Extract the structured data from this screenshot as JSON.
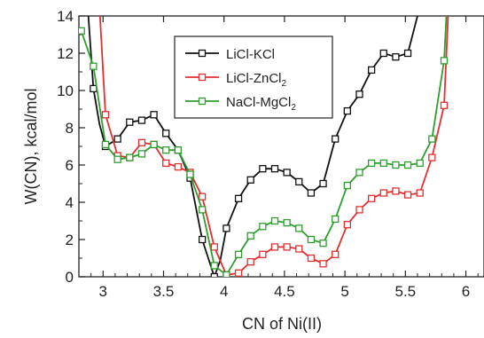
{
  "chart_data": {
    "type": "line",
    "xlabel": "CN of Ni(II)",
    "ylabel": "W(CN), kcal/mol",
    "xlim": [
      2.8,
      6.15
    ],
    "ylim": [
      0,
      14
    ],
    "x_ticks": [
      3,
      3.5,
      4,
      4.5,
      5,
      5.5,
      6
    ],
    "x_tick_labels": [
      "3",
      "3.5",
      "4",
      "4.5",
      "5",
      "5.5",
      "6"
    ],
    "y_ticks": [
      0,
      2,
      4,
      6,
      8,
      10,
      12,
      14
    ],
    "y_tick_labels": [
      "0",
      "2",
      "4",
      "6",
      "8",
      "10",
      "12",
      "14"
    ],
    "grid": false,
    "legend_position": "top-center",
    "marker": "open-square",
    "series": [
      {
        "name": "LiCl-KCl",
        "legend_main": "LiCl-KCl",
        "legend_sub": "",
        "legend_tail": "",
        "color": "#111111",
        "x": [
          2.82,
          2.92,
          3.02,
          3.12,
          3.22,
          3.32,
          3.42,
          3.52,
          3.62,
          3.72,
          3.82,
          3.92,
          4.02,
          4.12,
          4.22,
          4.32,
          4.42,
          4.52,
          4.62,
          4.72,
          4.82,
          4.92,
          5.02,
          5.12,
          5.22,
          5.32,
          5.42,
          5.52,
          5.62
        ],
        "y": [
          14.5,
          10.1,
          7.0,
          7.4,
          8.3,
          8.4,
          8.7,
          7.7,
          6.8,
          5.3,
          2.0,
          0.0,
          2.6,
          4.2,
          5.2,
          5.8,
          5.8,
          5.6,
          5.1,
          4.5,
          5.0,
          7.4,
          8.9,
          9.8,
          11.1,
          12.0,
          11.8,
          12.0,
          14.5
        ],
        "line_x": [
          2.82,
          2.87,
          2.92,
          2.97,
          3.02,
          3.12,
          3.22,
          3.32,
          3.42,
          3.52,
          3.62,
          3.72,
          3.82,
          3.92,
          3.97,
          4.02,
          4.12,
          4.22,
          4.32,
          4.42,
          4.52,
          4.62,
          4.72,
          4.82,
          4.92,
          5.02,
          5.12,
          5.22,
          5.32,
          5.42,
          5.52,
          5.62,
          5.66
        ],
        "line_y": [
          18,
          14.8,
          10.1,
          8.2,
          7.0,
          7.4,
          8.3,
          8.4,
          8.7,
          7.7,
          6.8,
          5.3,
          2.0,
          0.0,
          0.9,
          2.6,
          4.2,
          5.2,
          5.8,
          5.8,
          5.6,
          5.1,
          4.5,
          5.0,
          7.4,
          8.9,
          9.8,
          11.1,
          12.0,
          11.8,
          12.0,
          14.5,
          18
        ]
      },
      {
        "name": "LiCl-ZnCl2",
        "legend_main": "LiCl-ZnCl",
        "legend_sub": "2",
        "legend_tail": "",
        "color": "#e03030",
        "x": [
          3.02,
          3.12,
          3.22,
          3.32,
          3.42,
          3.52,
          3.62,
          3.72,
          3.82,
          3.92,
          4.02,
          4.12,
          4.22,
          4.32,
          4.42,
          4.52,
          4.62,
          4.72,
          4.82,
          4.92,
          5.02,
          5.12,
          5.22,
          5.32,
          5.42,
          5.52,
          5.62,
          5.72,
          5.82
        ],
        "y": [
          8.7,
          6.5,
          6.4,
          7.2,
          7.1,
          6.1,
          5.9,
          5.6,
          4.3,
          1.6,
          0.1,
          0.2,
          0.8,
          1.2,
          1.6,
          1.6,
          1.5,
          1.0,
          0.7,
          1.2,
          2.8,
          3.6,
          4.2,
          4.5,
          4.6,
          4.4,
          4.5,
          6.4,
          9.2
        ],
        "line_x": [
          2.93,
          2.97,
          3.02,
          3.12,
          3.22,
          3.32,
          3.42,
          3.52,
          3.62,
          3.72,
          3.82,
          3.92,
          4.02,
          4.12,
          4.22,
          4.32,
          4.42,
          4.52,
          4.62,
          4.72,
          4.82,
          4.92,
          5.02,
          5.12,
          5.22,
          5.32,
          5.42,
          5.52,
          5.62,
          5.72,
          5.82,
          5.88
        ],
        "line_y": [
          18,
          14.5,
          8.7,
          6.5,
          6.4,
          7.2,
          7.1,
          6.1,
          5.9,
          5.6,
          4.3,
          1.6,
          0.1,
          0.2,
          0.8,
          1.2,
          1.6,
          1.6,
          1.5,
          1.0,
          0.7,
          1.2,
          2.8,
          3.6,
          4.2,
          4.5,
          4.6,
          4.4,
          4.5,
          6.4,
          9.2,
          18
        ]
      },
      {
        "name": "NaCl-MgCl2",
        "legend_main": "NaCl-MgCl",
        "legend_sub": "2",
        "legend_tail": "",
        "color": "#2e9e2e",
        "x": [
          2.82,
          2.92,
          3.02,
          3.12,
          3.22,
          3.32,
          3.42,
          3.52,
          3.62,
          3.72,
          3.82,
          3.92,
          4.02,
          4.12,
          4.22,
          4.32,
          4.42,
          4.52,
          4.62,
          4.72,
          4.82,
          4.92,
          5.02,
          5.12,
          5.22,
          5.32,
          5.42,
          5.52,
          5.62,
          5.72,
          5.82
        ],
        "y": [
          13.2,
          11.3,
          7.1,
          6.3,
          6.4,
          6.6,
          7.1,
          6.8,
          6.8,
          5.5,
          3.6,
          0.6,
          0.1,
          1.2,
          2.2,
          2.7,
          3.0,
          2.9,
          2.6,
          2.0,
          1.8,
          3.1,
          4.9,
          5.6,
          6.1,
          6.1,
          6.0,
          6.0,
          6.1,
          7.4,
          11.6
        ],
        "line_x": [
          2.82,
          2.92,
          3.02,
          3.12,
          3.22,
          3.32,
          3.42,
          3.52,
          3.62,
          3.72,
          3.82,
          3.92,
          4.02,
          4.12,
          4.22,
          4.32,
          4.42,
          4.52,
          4.62,
          4.72,
          4.82,
          4.92,
          5.02,
          5.12,
          5.22,
          5.32,
          5.42,
          5.52,
          5.62,
          5.72,
          5.82,
          5.87
        ],
        "line_y": [
          13.2,
          11.3,
          7.1,
          6.3,
          6.4,
          6.6,
          7.1,
          6.8,
          6.8,
          5.5,
          3.6,
          0.6,
          0.1,
          1.2,
          2.2,
          2.7,
          3.0,
          2.9,
          2.6,
          2.0,
          1.8,
          3.1,
          4.9,
          5.6,
          6.1,
          6.1,
          6.0,
          6.0,
          6.1,
          7.4,
          11.6,
          18
        ]
      }
    ]
  }
}
